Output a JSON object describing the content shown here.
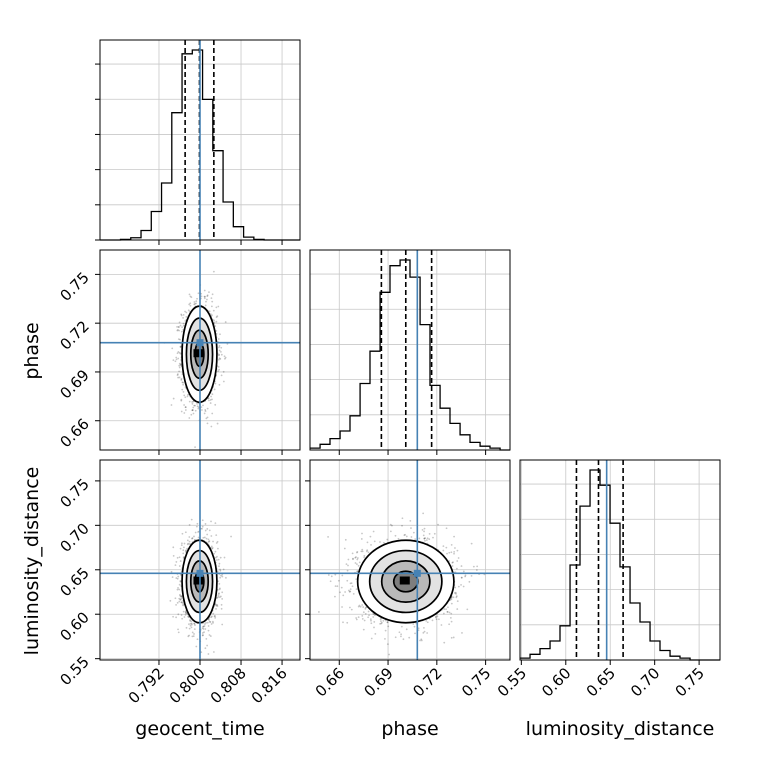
{
  "chart_data": {
    "type": "corner",
    "parameters": [
      "geocent_time",
      "phase",
      "luminosity_distance"
    ],
    "axis_labels": {
      "x": [
        "geocent_time",
        "phase",
        "luminosity_distance"
      ],
      "y": [
        "phase",
        "luminosity_distance"
      ]
    },
    "ranges": {
      "geocent_time": [
        0.7805,
        0.8195
      ],
      "phase": [
        0.642,
        0.765
      ],
      "luminosity_distance": [
        0.5485,
        0.7735
      ]
    },
    "ticks": {
      "geocent_time": [
        "0.792",
        "0.800",
        "0.808",
        "0.816"
      ],
      "phase": [
        "0.66",
        "0.69",
        "0.72",
        "0.75"
      ],
      "luminosity_distance": [
        "0.55",
        "0.60",
        "0.65",
        "0.70",
        "0.75"
      ]
    },
    "truths": {
      "geocent_time": 0.8,
      "phase": 0.708,
      "luminosity_distance": 0.646
    },
    "truth_color": "#4682b4",
    "quantiles": {
      "geocent_time": [
        0.7971,
        0.7999,
        0.8027
      ],
      "phase": [
        0.6859,
        0.7009,
        0.7168
      ],
      "luminosity_distance": [
        0.612,
        0.6368,
        0.6645
      ]
    },
    "histograms": {
      "geocent_time": {
        "bin_edges": [
          0.7805,
          0.7825,
          0.7845,
          0.7865,
          0.7885,
          0.7905,
          0.7925,
          0.7945,
          0.7965,
          0.7985,
          0.8005,
          0.8025,
          0.8045,
          0.8065,
          0.8085,
          0.8105,
          0.8125,
          0.8145,
          0.8165,
          0.8185,
          0.8205
        ],
        "counts": [
          0,
          0,
          0.3,
          1.2,
          5,
          15,
          30,
          67,
          98,
          100,
          74,
          47,
          20,
          7,
          1.5,
          0.3,
          0,
          0,
          0,
          0
        ]
      },
      "phase": {
        "bin_edges": [
          0.642,
          0.6482,
          0.6543,
          0.6605,
          0.6666,
          0.6728,
          0.6789,
          0.6851,
          0.6912,
          0.6974,
          0.7035,
          0.7097,
          0.7158,
          0.722,
          0.7281,
          0.7343,
          0.7404,
          0.7466,
          0.7527,
          0.7589,
          0.765
        ],
        "counts": [
          1,
          3,
          6,
          10,
          18,
          35,
          52,
          83,
          97,
          100,
          91,
          66,
          34,
          22,
          14,
          8,
          4,
          2,
          1,
          0
        ]
      },
      "luminosity_distance": {
        "bin_edges": [
          0.5485,
          0.5598,
          0.571,
          0.5823,
          0.5935,
          0.6048,
          0.616,
          0.6273,
          0.6385,
          0.6498,
          0.661,
          0.6723,
          0.6835,
          0.6948,
          0.706,
          0.7173,
          0.7285,
          0.7398,
          0.751,
          0.7623,
          0.7735
        ],
        "counts": [
          1,
          3,
          6,
          10,
          18,
          50,
          81,
          100,
          92,
          72,
          49,
          30,
          20,
          10,
          5,
          2,
          1,
          0,
          0,
          0
        ]
      }
    },
    "contours": {
      "center": {
        "geocent_time": 0.7999,
        "phase": 0.7009,
        "luminosity_distance": 0.6368
      },
      "sigma": {
        "geocent_time": 0.0017,
        "phase": 0.0148,
        "luminosity_distance": 0.0232
      },
      "levels_sigma": [
        0.5,
        1.0,
        1.5,
        2.0
      ]
    },
    "grid": true
  }
}
